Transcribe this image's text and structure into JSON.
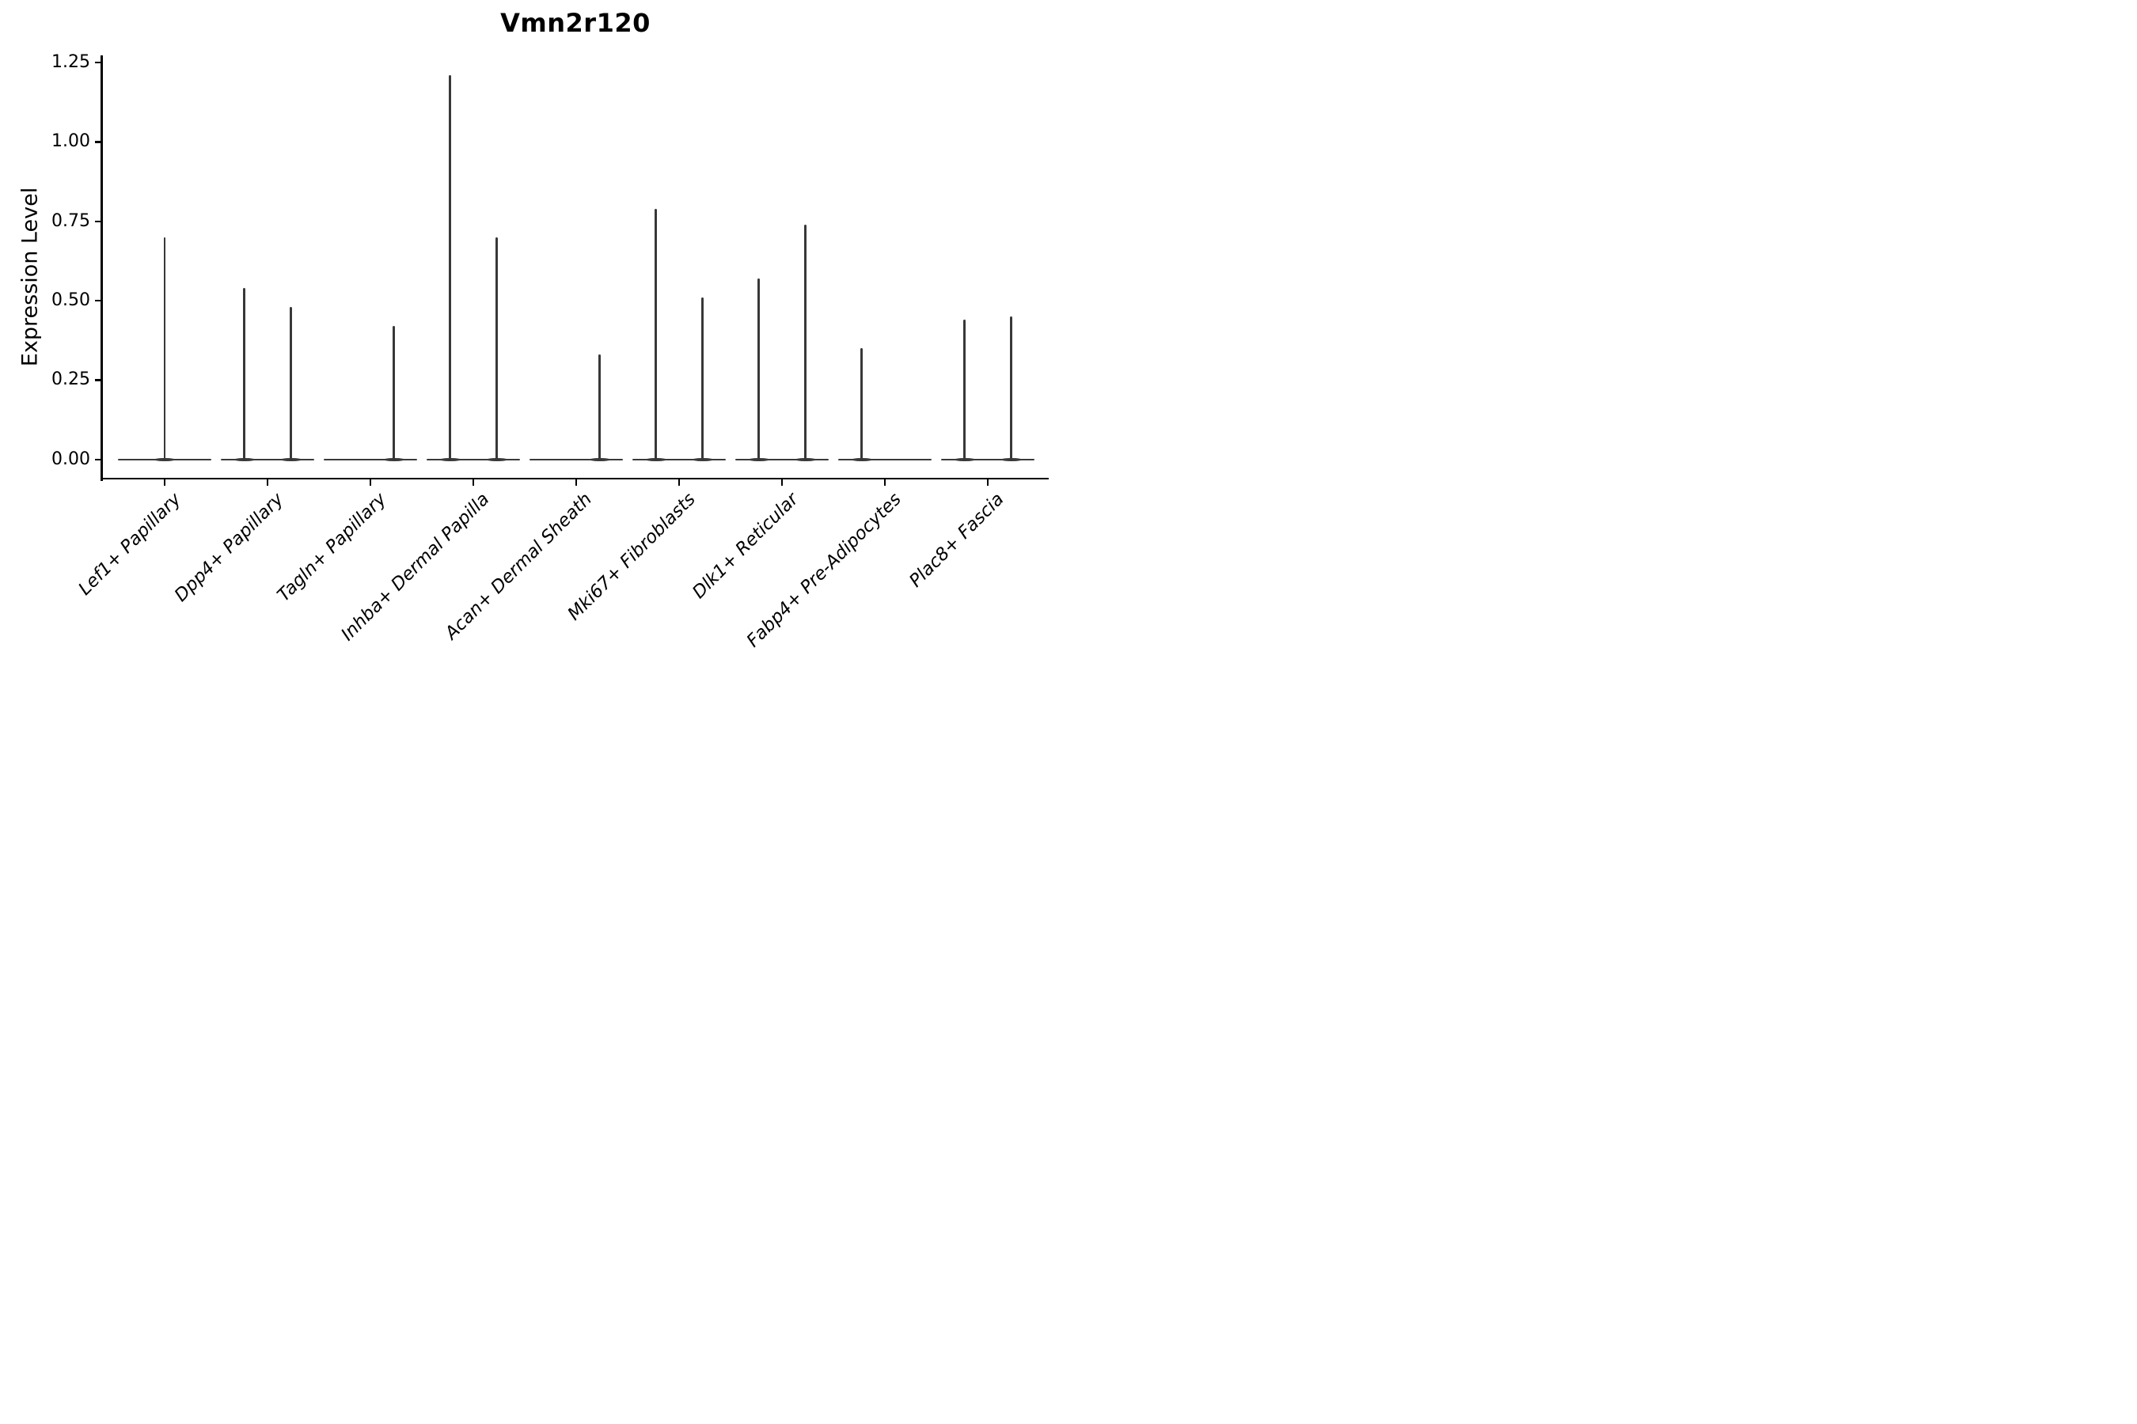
{
  "title": "Vmn2r120",
  "axis_color": "#000000",
  "violin_color": "#3a3a3a",
  "background_color": "#ffffff",
  "chart_data": {
    "type": "violin",
    "title": "Vmn2r120",
    "xlabel": "",
    "ylabel": "Expression Level",
    "ylim": [
      0,
      1.29
    ],
    "yticks": [
      0.0,
      0.25,
      0.5,
      0.75,
      1.0,
      1.25
    ],
    "ytick_labels": [
      "0.00",
      "0.25",
      "0.50",
      "0.75",
      "1.00",
      "1.25"
    ],
    "grid": false,
    "legend": "none",
    "xtick_label_style": "italic, rotated 45deg, right-anchored",
    "description": "Seurat-style violin plot of gene expression; each cell type shows a flat zero-density base with thin spikes rising to the maximum expression of sparse expressing cells.",
    "categories": [
      {
        "label": "Lef1+ Papillary",
        "violins": [
          {
            "position": "center",
            "max": 0.7
          }
        ]
      },
      {
        "label": "Dpp4+ Papillary",
        "violins": [
          {
            "position": "left",
            "max": 0.54
          },
          {
            "position": "right",
            "max": 0.48
          }
        ]
      },
      {
        "label": "Tagln+ Papillary",
        "violins": [
          {
            "position": "right",
            "max": 0.42
          }
        ]
      },
      {
        "label": "Inhba+ Dermal Papilla",
        "violins": [
          {
            "position": "left",
            "max": 1.21
          },
          {
            "position": "right",
            "max": 0.7
          }
        ]
      },
      {
        "label": "Acan+ Dermal Sheath",
        "violins": [
          {
            "position": "right",
            "max": 0.33
          }
        ]
      },
      {
        "label": "Mki67+ Fibroblasts",
        "violins": [
          {
            "position": "left",
            "max": 0.79
          },
          {
            "position": "right",
            "max": 0.51
          }
        ]
      },
      {
        "label": "Dlk1+ Reticular",
        "violins": [
          {
            "position": "left",
            "max": 0.57
          },
          {
            "position": "right",
            "max": 0.74
          }
        ]
      },
      {
        "label": "Fabp4+ Pre-Adipocytes",
        "violins": [
          {
            "position": "left",
            "max": 0.35
          }
        ]
      },
      {
        "label": "Plac8+ Fascia",
        "violins": [
          {
            "position": "left",
            "max": 0.44
          },
          {
            "position": "right",
            "max": 0.45
          }
        ]
      }
    ]
  }
}
